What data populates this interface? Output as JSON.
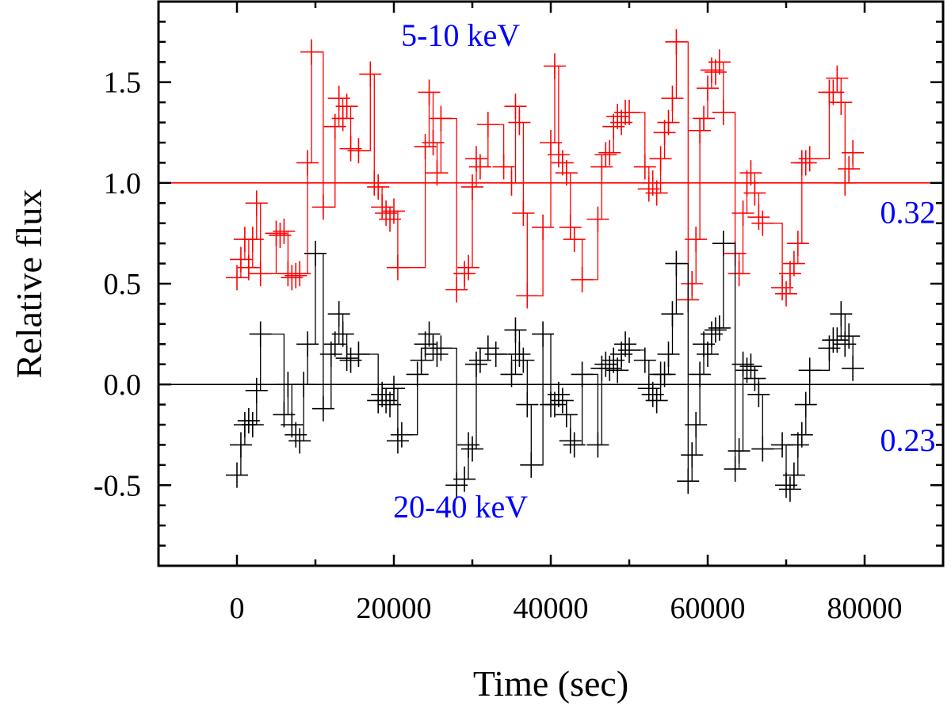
{
  "chart_data": {
    "type": "line",
    "title": "",
    "xlabel": "Time (sec)",
    "ylabel": "Relative flux",
    "xlim": [
      -10000,
      90000
    ],
    "ylim": [
      -0.9,
      1.9
    ],
    "xticks": [
      0,
      20000,
      40000,
      60000,
      80000
    ],
    "xtick_labels": [
      "0",
      "20000",
      "40000",
      "60000",
      "80000"
    ],
    "yticks": [
      -0.5,
      0.0,
      0.5,
      1.0,
      1.5
    ],
    "ytick_labels": [
      "-0.5",
      "0.0",
      "0.5",
      "1.0",
      "1.5"
    ],
    "grid": false,
    "reference_lines": [
      {
        "y": 1.0,
        "color": "#ff0000"
      },
      {
        "y": 0.0,
        "color": "#000000"
      }
    ],
    "annotations": [
      {
        "text": "5-10 keV",
        "x": 28500,
        "y": 1.68,
        "color": "#0000ff"
      },
      {
        "text": "20-40 keV",
        "x": 28500,
        "y": -0.66,
        "color": "#0000ff"
      },
      {
        "text": "0.32",
        "x": 85500,
        "y": 0.8,
        "color": "#0000ff"
      },
      {
        "text": "0.23",
        "x": 85500,
        "y": -0.33,
        "color": "#0000ff"
      }
    ],
    "series": [
      {
        "name": "5-10 keV",
        "color": "#ff0000",
        "x": [
          0,
          500,
          1000,
          1500,
          2000,
          2500,
          3000,
          5000,
          5500,
          6000,
          6500,
          7000,
          7500,
          8000,
          9000,
          9500,
          11000,
          12500,
          13000,
          13500,
          14000,
          14500,
          15500,
          17000,
          17500,
          18000,
          18500,
          19000,
          19500,
          20000,
          20500,
          24000,
          24500,
          25000,
          25500,
          26000,
          28000,
          29000,
          29500,
          30000,
          30500,
          31000,
          32000,
          34000,
          35000,
          35500,
          36000,
          36500,
          37000,
          39000,
          40000,
          40500,
          41000,
          41500,
          42000,
          42500,
          43000,
          44000,
          46000,
          46500,
          47000,
          47500,
          48000,
          48500,
          49000,
          49500,
          50000,
          52000,
          52500,
          53000,
          53500,
          54000,
          54500,
          55000,
          55500,
          56000,
          57500,
          58000,
          58500,
          59000,
          59500,
          60000,
          60500,
          61000,
          61500,
          62000,
          63500,
          64000,
          64500,
          65000,
          65500,
          66000,
          66500,
          67000,
          69500,
          70000,
          70500,
          71000,
          71500,
          72000,
          72500,
          73000,
          75500,
          76000,
          76500,
          77000,
          77500,
          78000,
          78500
        ],
        "values": [
          0.53,
          0.62,
          0.72,
          0.58,
          0.72,
          0.9,
          0.55,
          0.75,
          0.74,
          0.76,
          0.55,
          0.53,
          0.54,
          0.55,
          1.1,
          1.65,
          0.88,
          1.28,
          1.42,
          1.32,
          1.38,
          1.17,
          1.16,
          1.54,
          1.0,
          0.98,
          0.88,
          0.85,
          0.82,
          0.86,
          0.58,
          1.18,
          1.45,
          1.2,
          1.05,
          1.32,
          0.47,
          0.55,
          0.58,
          0.98,
          1.12,
          1.08,
          1.29,
          1.08,
          1.0,
          1.38,
          1.3,
          0.85,
          0.44,
          0.78,
          1.2,
          1.58,
          1.14,
          1.1,
          1.05,
          0.78,
          0.72,
          0.52,
          0.82,
          1.08,
          1.14,
          1.15,
          1.28,
          1.33,
          1.3,
          1.35,
          1.35,
          1.08,
          0.97,
          1.0,
          0.95,
          1.12,
          1.25,
          1.3,
          1.42,
          1.7,
          0.42,
          0.5,
          0.72,
          1.26,
          1.32,
          1.47,
          1.56,
          1.55,
          1.6,
          1.35,
          0.65,
          0.55,
          0.85,
          1.0,
          1.05,
          0.95,
          0.83,
          0.8,
          0.48,
          0.45,
          0.55,
          0.6,
          0.7,
          1.1,
          1.1,
          1.12,
          1.45,
          1.45,
          1.52,
          1.4,
          1.0,
          1.07,
          1.15
        ]
      },
      {
        "name": "20-40 keV",
        "color": "#000000",
        "x": [
          0,
          500,
          1000,
          1500,
          2000,
          2500,
          3000,
          6000,
          6500,
          7000,
          7500,
          8000,
          8500,
          9000,
          10000,
          11000,
          12000,
          12500,
          13000,
          13500,
          14000,
          14500,
          15500,
          18000,
          18500,
          19000,
          19500,
          20000,
          20500,
          21000,
          23000,
          23500,
          24000,
          24500,
          25000,
          25500,
          26000,
          28000,
          29000,
          29500,
          30000,
          30500,
          31000,
          32000,
          33000,
          35000,
          35500,
          36000,
          36500,
          37000,
          37500,
          39000,
          40000,
          40500,
          41000,
          41500,
          42000,
          42500,
          43000,
          44000,
          46000,
          46500,
          47000,
          47500,
          48000,
          48500,
          49000,
          49500,
          50000,
          52000,
          52500,
          53000,
          53500,
          54000,
          54500,
          55000,
          55500,
          56000,
          57500,
          58000,
          58500,
          59000,
          59500,
          60000,
          60500,
          61000,
          61500,
          62000,
          63500,
          64000,
          64500,
          65000,
          65500,
          66000,
          66500,
          67000,
          69500,
          70000,
          70500,
          71000,
          71500,
          72000,
          72500,
          73000,
          75500,
          76000,
          76500,
          77000,
          77500,
          78000,
          78500
        ],
        "values": [
          -0.45,
          -0.3,
          -0.2,
          -0.18,
          -0.2,
          -0.03,
          0.25,
          -0.15,
          0.0,
          -0.2,
          -0.25,
          -0.28,
          0.0,
          0.2,
          0.65,
          -0.12,
          0.15,
          0.2,
          0.35,
          0.25,
          0.13,
          0.12,
          0.15,
          -0.08,
          -0.05,
          -0.08,
          -0.1,
          -0.02,
          -0.28,
          -0.25,
          0.05,
          0.12,
          0.2,
          0.25,
          0.18,
          0.15,
          0.18,
          -0.5,
          -0.47,
          -0.3,
          -0.32,
          0.1,
          0.12,
          0.18,
          0.15,
          0.05,
          0.27,
          0.15,
          0.12,
          -0.1,
          -0.4,
          0.25,
          -0.1,
          -0.1,
          -0.05,
          -0.08,
          -0.15,
          -0.28,
          -0.3,
          0.05,
          -0.3,
          0.08,
          0.1,
          0.08,
          0.12,
          0.07,
          0.15,
          0.2,
          0.17,
          0.12,
          -0.02,
          -0.05,
          -0.08,
          0.05,
          0.05,
          0.15,
          0.35,
          0.6,
          -0.48,
          -0.35,
          -0.2,
          0.05,
          0.2,
          0.15,
          0.25,
          0.27,
          0.28,
          0.7,
          -0.42,
          -0.33,
          0.1,
          0.07,
          0.09,
          0.03,
          -0.05,
          -0.32,
          -0.3,
          -0.5,
          -0.52,
          -0.45,
          -0.3,
          -0.25,
          -0.1,
          0.07,
          0.18,
          0.22,
          0.22,
          0.35,
          0.2,
          0.24,
          0.08
        ]
      }
    ]
  }
}
